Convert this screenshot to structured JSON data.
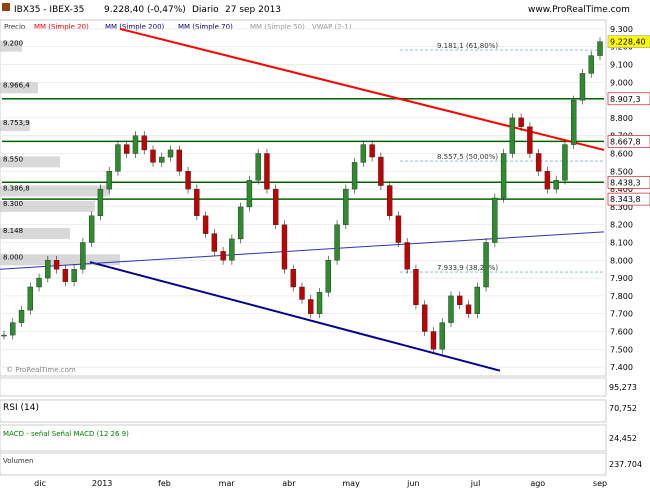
{
  "header": {
    "symbol": "IBX35 - IBEX-35",
    "last": "9.228,40 (-0,47%)",
    "period": "Diario",
    "date": "27 sep 2013",
    "site": "www.ProRealTime.com",
    "legend": [
      "Precio",
      "MM (Simple 20)",
      "MM (Simple 200)",
      "MM (Simple 70)",
      "MM (Simple 50)",
      "VWAP (2-1)"
    ]
  },
  "watermark": "© ProRealTime.com",
  "colors": {
    "price_up": "#2e8b2e",
    "price_down": "#c00000",
    "grid": "#dddddd",
    "support_line": "#006400",
    "trend_red": "#ff0000",
    "trend_blue": "#00008b",
    "volume_profile": "#c8c8c8",
    "last_price_box": "#ffff00"
  },
  "chart_data": [
    {
      "type": "line",
      "panel": "price",
      "title": "IBX35 - IBEX-35",
      "xlabel": "",
      "ylabel": "",
      "x_ticks": [
        "dic",
        "2013",
        "feb",
        "mar",
        "abr",
        "may",
        "jun",
        "jul",
        "ago",
        "sep"
      ],
      "y_ticks": [
        7400,
        7500,
        7600,
        7700,
        7800,
        7900,
        8000,
        8100,
        8200,
        8300,
        8400,
        8500,
        8600,
        8700,
        8800,
        8900,
        9000,
        9100,
        9200,
        9300
      ],
      "y_tick_labels": [
        "7.400",
        "7.500",
        "7.600",
        "7.700",
        "7.800",
        "7.900",
        "8.000",
        "8.100",
        "8.200",
        "8.300",
        "8.400",
        "8.500",
        "8.600",
        "8.700",
        "8.800",
        "8.900",
        "9.000",
        "9.100",
        "9.200",
        "9.300"
      ],
      "ylim": [
        7350,
        9350
      ],
      "series": [
        {
          "values": [
            7580,
            7650,
            7720,
            7850,
            7900,
            8000,
            7950,
            7880,
            7950,
            8100,
            8250,
            8400,
            8500,
            8650,
            8600,
            8700,
            8620,
            8550,
            8580,
            8620,
            8500,
            8400,
            8250,
            8150,
            8050,
            8000,
            8120,
            8300,
            8450,
            8600,
            8400,
            8200,
            7950,
            7850,
            7780,
            7700,
            7820,
            8000,
            8200,
            8400,
            8550,
            8650,
            8580,
            8420,
            8250,
            8100,
            7950,
            7750,
            7600,
            7500,
            7650,
            7800,
            7750,
            7700,
            7850,
            8100,
            8350,
            8600,
            8800,
            8750,
            8600,
            8500,
            8400,
            8450,
            8650,
            8900,
            9050,
            9150,
            9228.4
          ]
        }
      ],
      "last_value": 9228.4,
      "price_labels": [
        "9.228,40",
        "8.907,3",
        "8.667,8",
        "8.438,3",
        "8.343,8"
      ],
      "volume_profile_labels": [
        "9.200",
        "8.966,4",
        "8.753,9",
        "8.550",
        "8.386,8",
        "8.300",
        "8.148",
        "8.000"
      ],
      "fibonacci_labels": [
        "9.181,1 (61,80%)",
        "8.557,5 (50,00%)",
        "7.933,9 (38,20%)"
      ],
      "grid": true
    },
    {
      "type": "line",
      "panel": "indicator",
      "title": "",
      "xlabel": "",
      "ylabel": "",
      "last_value": 95.273,
      "last_label": "95,273"
    },
    {
      "type": "line",
      "panel": "indicator",
      "title": "RSI (14)",
      "xlabel": "",
      "ylabel": "",
      "last_value": 70.752,
      "last_label": "70,752"
    },
    {
      "type": "line",
      "panel": "indicator",
      "title": "MACD - señal  Señal MACD (12 26 9)",
      "xlabel": "",
      "ylabel": "",
      "last_value": 24.452,
      "last_label": "24,452"
    },
    {
      "type": "bar",
      "panel": "volume",
      "title": "Volumen",
      "xlabel": "",
      "ylabel": "",
      "last_value": 237704,
      "last_label": "237.704"
    }
  ]
}
